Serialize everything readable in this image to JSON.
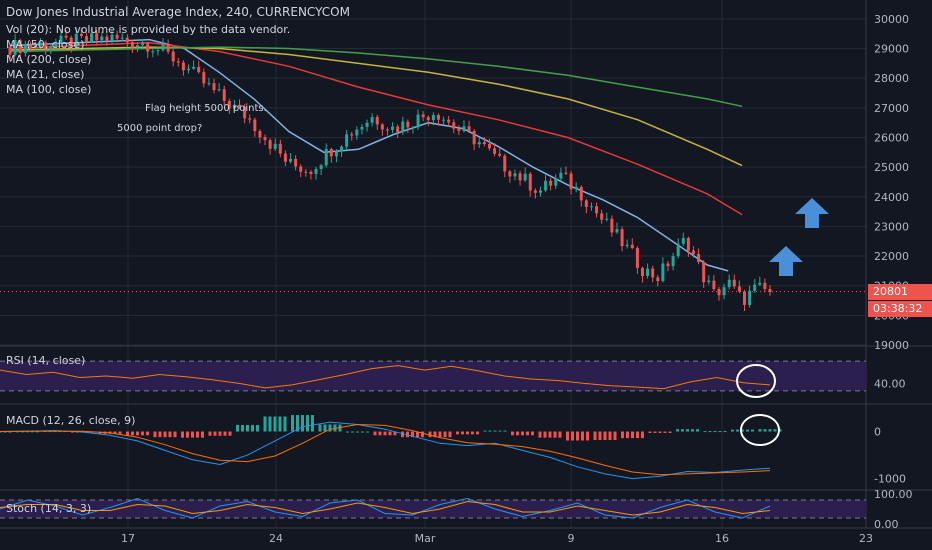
{
  "header": {
    "title": "Dow Jones Industrial Average Index, 240, CURRENCYCOM",
    "volume_note": "Vol (20): No volume is provided by the data vendor.",
    "ma_labels": [
      "MA (50, close)",
      "MA (200, close)",
      "MA (21, close)",
      "MA (100, close)"
    ]
  },
  "annotations": {
    "flag_height": "Flag height 5000 points.",
    "drop_question": "5000 point drop?"
  },
  "price_badges": {
    "last_price": "20801",
    "countdown": "03:38:32"
  },
  "panes": {
    "rsi_label": "RSI (14, close)",
    "macd_label": "MACD (12, 26, close, 9)",
    "stoch_label": "Stoch (14, 3, 3)"
  },
  "chart_data": {
    "type": "candlestick",
    "x_ticks": [
      "17",
      "24",
      "Mar",
      "9",
      "16",
      "23"
    ],
    "y_ticks": [
      "19000",
      "20000",
      "21000",
      "22000",
      "23000",
      "24000",
      "25000",
      "26000",
      "27000",
      "28000",
      "29000",
      "30000"
    ],
    "ylim": [
      19000,
      30300
    ],
    "price_path": [
      [
        0,
        29050
      ],
      [
        8,
        29200
      ],
      [
        14,
        29350
      ],
      [
        20,
        29150
      ],
      [
        24,
        28600
      ],
      [
        28,
        27800
      ],
      [
        31,
        27200
      ],
      [
        34,
        26700
      ],
      [
        37,
        25900
      ],
      [
        40,
        25100
      ],
      [
        43,
        24900
      ],
      [
        46,
        25600
      ],
      [
        49,
        26200
      ],
      [
        52,
        26700
      ],
      [
        55,
        26300
      ],
      [
        58,
        26600
      ],
      [
        61,
        26900
      ],
      [
        64,
        26300
      ],
      [
        67,
        25900
      ],
      [
        70,
        25200
      ],
      [
        73,
        24700
      ],
      [
        76,
        24200
      ],
      [
        79,
        24700
      ],
      [
        82,
        24100
      ],
      [
        85,
        23200
      ],
      [
        88,
        22400
      ],
      [
        91,
        21500
      ],
      [
        93,
        21300
      ],
      [
        95,
        22000
      ],
      [
        97,
        22600
      ],
      [
        99,
        21500
      ],
      [
        101,
        20700
      ],
      [
        103,
        21100
      ],
      [
        105,
        20500
      ],
      [
        107,
        20900
      ],
      [
        109,
        20801
      ]
    ],
    "ma_series": [
      {
        "name": "MA (21, close)",
        "color": "#7fb2e5",
        "points": [
          [
            0,
            29100
          ],
          [
            20,
            29300
          ],
          [
            25,
            29000
          ],
          [
            30,
            28200
          ],
          [
            35,
            27300
          ],
          [
            40,
            26200
          ],
          [
            45,
            25500
          ],
          [
            50,
            25600
          ],
          [
            55,
            26100
          ],
          [
            60,
            26500
          ],
          [
            65,
            26300
          ],
          [
            70,
            25700
          ],
          [
            75,
            25000
          ],
          [
            80,
            24400
          ],
          [
            85,
            23900
          ],
          [
            90,
            23300
          ],
          [
            95,
            22500
          ],
          [
            100,
            21700
          ],
          [
            103,
            21500
          ]
        ]
      },
      {
        "name": "MA (50, close)",
        "color": "#e53935",
        "points": [
          [
            0,
            29000
          ],
          [
            20,
            29200
          ],
          [
            30,
            28900
          ],
          [
            40,
            28400
          ],
          [
            50,
            27700
          ],
          [
            60,
            27100
          ],
          [
            70,
            26600
          ],
          [
            80,
            26000
          ],
          [
            90,
            25100
          ],
          [
            100,
            24100
          ],
          [
            105,
            23400
          ]
        ]
      },
      {
        "name": "MA (100, close)",
        "color": "#c9b33e",
        "points": [
          [
            0,
            28950
          ],
          [
            20,
            29050
          ],
          [
            30,
            29000
          ],
          [
            40,
            28800
          ],
          [
            50,
            28500
          ],
          [
            60,
            28200
          ],
          [
            70,
            27800
          ],
          [
            80,
            27300
          ],
          [
            90,
            26600
          ],
          [
            100,
            25600
          ],
          [
            105,
            25050
          ]
        ]
      },
      {
        "name": "MA (200, close)",
        "color": "#43a047",
        "points": [
          [
            0,
            28900
          ],
          [
            20,
            29000
          ],
          [
            30,
            29050
          ],
          [
            40,
            29000
          ],
          [
            50,
            28850
          ],
          [
            60,
            28650
          ],
          [
            70,
            28400
          ],
          [
            80,
            28100
          ],
          [
            90,
            27700
          ],
          [
            100,
            27300
          ],
          [
            105,
            27050
          ]
        ]
      }
    ],
    "last_price": 20801,
    "rsi": {
      "y_ticks": [
        "40.00"
      ],
      "band": [
        30,
        70
      ],
      "ylim": [
        15,
        85
      ],
      "values": [
        58,
        52,
        55,
        48,
        50,
        47,
        52,
        49,
        45,
        40,
        34,
        38,
        45,
        52,
        60,
        64,
        58,
        63,
        57,
        50,
        46,
        44,
        40,
        37,
        35,
        33,
        42,
        48,
        41,
        38
      ]
    },
    "macd": {
      "y_ticks": [
        "0",
        "-1000"
      ],
      "ylim": [
        -1200,
        500
      ],
      "macd_line": [
        0,
        10,
        20,
        -10,
        -80,
        -200,
        -400,
        -600,
        -700,
        -500,
        -200,
        100,
        200,
        150,
        50,
        -100,
        -250,
        -300,
        -250,
        -400,
        -550,
        -750,
        -900,
        -1000,
        -950,
        -850,
        -870,
        -820,
        -780
      ],
      "signal_line": [
        0,
        5,
        10,
        5,
        -30,
        -120,
        -280,
        -470,
        -610,
        -640,
        -520,
        -250,
        50,
        150,
        130,
        20,
        -130,
        -240,
        -270,
        -320,
        -420,
        -560,
        -720,
        -860,
        -920,
        -900,
        -880,
        -860,
        -830
      ],
      "histogram": [
        0,
        5,
        10,
        -15,
        -50,
        -80,
        -120,
        -130,
        -90,
        140,
        320,
        350,
        150,
        0,
        -80,
        -120,
        -120,
        -60,
        20,
        -80,
        -130,
        -190,
        -180,
        -140,
        -30,
        50,
        10,
        40,
        50
      ]
    },
    "stoch": {
      "y_ticks": [
        "100.00",
        "0.00"
      ],
      "band": [
        20,
        80
      ],
      "ylim": [
        0,
        100
      ],
      "k_line": [
        50,
        80,
        60,
        30,
        55,
        85,
        45,
        20,
        60,
        75,
        40,
        25,
        70,
        80,
        35,
        30,
        65,
        85,
        50,
        25,
        45,
        70,
        30,
        20,
        55,
        80,
        40,
        20,
        60
      ],
      "d_line": [
        55,
        65,
        65,
        45,
        45,
        65,
        60,
        35,
        45,
        65,
        55,
        35,
        50,
        70,
        55,
        35,
        50,
        75,
        65,
        40,
        40,
        60,
        45,
        30,
        40,
        65,
        55,
        35,
        45
      ]
    }
  },
  "colors": {
    "up": "#26a69a",
    "down": "#ef5350",
    "pane_band": "#2a1f4f",
    "rsi_line": "#f57c00",
    "macd_line": "#2196f3",
    "signal_line": "#ff6d00",
    "stoch_k": "#2196f3",
    "stoch_d": "#ff9800",
    "arrow": "#4a90d9",
    "grid": "#252a37"
  },
  "drawings": [
    "up-arrow",
    "up-arrow",
    "circle",
    "circle"
  ]
}
